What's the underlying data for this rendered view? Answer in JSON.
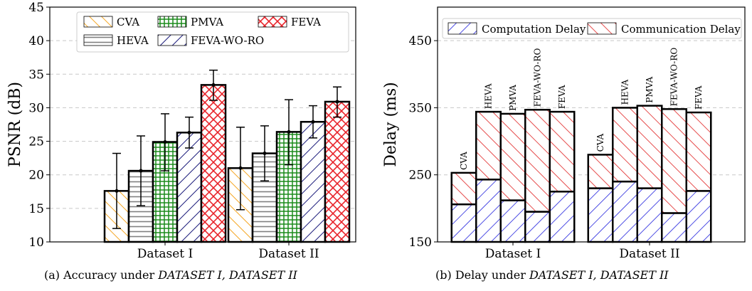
{
  "captions": {
    "left_prefix": "(a) Accuracy under ",
    "left_italic": "DATASET I, DATASET II",
    "right_prefix": "(b) Delay under ",
    "right_italic": "DATASET I, DATASET II"
  },
  "colors": {
    "CVA": "#f5a623",
    "HEVA": "#808080",
    "PMVA": "#1a8a1a",
    "FEVA-WO-RO": "#1a1a7a",
    "FEVA": "#e8232a",
    "computation": "#2222dd",
    "communication": "#e02020",
    "grid": "#c8c8c8"
  },
  "chart_data": [
    {
      "type": "bar",
      "ylabel": "PSNR (dB)",
      "ylim": [
        10,
        45
      ],
      "yticks": [
        10,
        15,
        20,
        25,
        30,
        35,
        40,
        45
      ],
      "grid": "y-dashed",
      "legend_placement": "top-center",
      "legend_rows": [
        [
          "CVA",
          "PMVA",
          "FEVA"
        ],
        [
          "HEVA",
          "FEVA-WO-RO"
        ]
      ],
      "categories": [
        "Dataset I",
        "Dataset II"
      ],
      "series": [
        {
          "name": "CVA",
          "values": [
            17.6,
            21.0
          ],
          "err_low": [
            12.0,
            14.8
          ],
          "err_high": [
            23.2,
            27.1
          ]
        },
        {
          "name": "HEVA",
          "values": [
            20.6,
            23.2
          ],
          "err_low": [
            15.4,
            19.1
          ],
          "err_high": [
            25.8,
            27.3
          ]
        },
        {
          "name": "PMVA",
          "values": [
            24.9,
            26.4
          ],
          "err_low": [
            20.6,
            21.5
          ],
          "err_high": [
            29.1,
            31.2
          ]
        },
        {
          "name": "FEVA-WO-RO",
          "values": [
            26.3,
            27.9
          ],
          "err_low": [
            24.0,
            25.5
          ],
          "err_high": [
            28.6,
            30.3
          ]
        },
        {
          "name": "FEVA",
          "values": [
            33.4,
            30.9
          ],
          "err_low": [
            31.1,
            28.6
          ],
          "err_high": [
            35.6,
            33.1
          ]
        }
      ]
    },
    {
      "type": "bar",
      "stacked": true,
      "ylabel": "Delay (ms)",
      "ylim": [
        150,
        500
      ],
      "yticks": [
        150,
        250,
        350,
        450
      ],
      "grid": "y-dashed",
      "legend_placement": "top",
      "categories": [
        "Dataset I",
        "Dataset II"
      ],
      "bar_labels": [
        "CVA",
        "HEVA",
        "PMVA",
        "FEVA-WO-RO",
        "FEVA"
      ],
      "series": [
        {
          "name": "Computation Delay",
          "values": [
            [
              206,
              243,
              212,
              195,
              225
            ],
            [
              230,
              240,
              230,
              193,
              226
            ]
          ]
        },
        {
          "name": "Communication Delay",
          "values": [
            [
              47,
              101,
              129,
              152,
              119
            ],
            [
              50,
              110,
              123,
              155,
              117
            ]
          ]
        }
      ]
    }
  ]
}
